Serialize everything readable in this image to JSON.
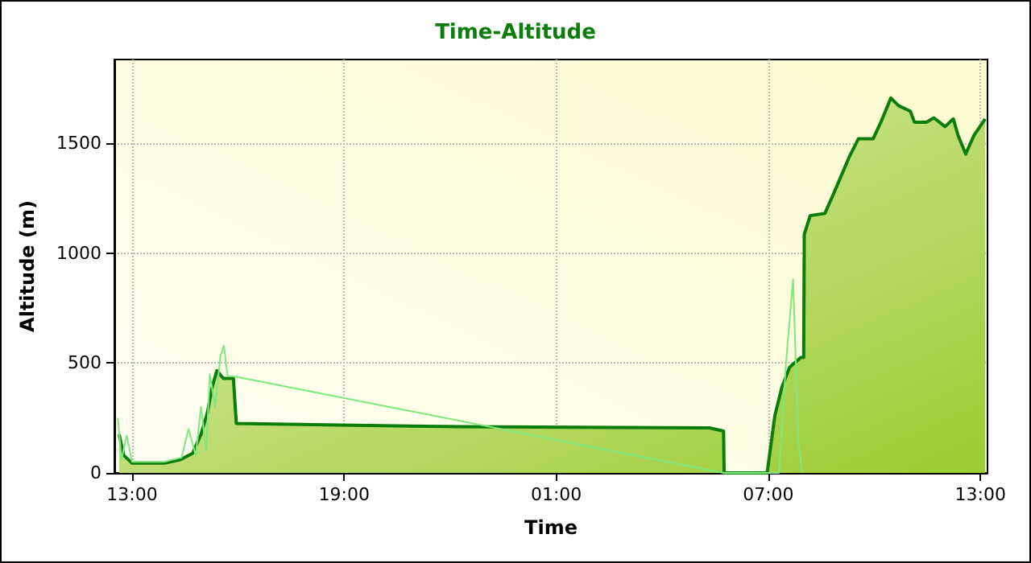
{
  "chart_data": {
    "type": "area",
    "title": "Time-Altitude",
    "xlabel": "Time",
    "ylabel": "Altitude (m)",
    "xlim": [
      "--01-01T12:30",
      "--01-02T13:12"
    ],
    "xticks": [
      {
        "value": "--01-01T13:00",
        "label": "13:00"
      },
      {
        "value": "--01-01T19:00",
        "label": "19:00"
      },
      {
        "value": "--01-02T01:00",
        "label": "01:00"
      },
      {
        "value": "--01-02T07:00",
        "label": "07:00"
      },
      {
        "value": "--01-02T13:00",
        "label": "13:00"
      }
    ],
    "ylim": [
      0,
      1880
    ],
    "yticks": [
      0,
      500,
      1000,
      1500
    ],
    "grid": true,
    "marker": "none",
    "line_style": "solid",
    "series": [
      {
        "type": "line",
        "color": "#7ee87e",
        "x": [
          "--01-01T12:36",
          "--01-01T12:42",
          "--01-01T12:51",
          "--01-01T13:00",
          "--01-01T13:54",
          "--01-01T14:24",
          "--01-01T14:36",
          "--01-01T14:48",
          "--01-01T14:57",
          "--01-01T15:06",
          "--01-01T15:12",
          "--01-01T15:21",
          "--01-01T15:30",
          "--01-01T15:36",
          "--01-01T15:42",
          "--01-01T15:52",
          "--01-02T05:44",
          "--01-02T06:58",
          "--01-02T07:18",
          "--01-02T07:30",
          "--01-02T07:42",
          "--01-02T07:51",
          "--01-02T07:57"
        ],
        "values": [
          250,
          60,
          170,
          50,
          50,
          70,
          200,
          80,
          300,
          100,
          450,
          300,
          530,
          580,
          440,
          440,
          0,
          0,
          0,
          500,
          880,
          150,
          0
        ]
      },
      {
        "color": "#0a7d0a",
        "x": [
          "--01-01T12:38",
          "--01-01T12:46",
          "--01-01T13:00",
          "--01-01T13:55",
          "--01-01T14:22",
          "--01-01T14:43",
          "--01-01T14:57",
          "--01-01T15:08",
          "--01-01T15:16",
          "--01-01T15:24",
          "--01-01T15:35",
          "--01-01T15:52",
          "--01-01T15:57",
          "--01-01T18:54",
          "--01-01T22:18",
          "--01-02T05:20",
          "--01-02T05:44",
          "--01-02T05:45",
          "--01-02T06:58",
          "--01-02T07:11",
          "--01-02T07:23",
          "--01-02T07:36",
          "--01-02T07:55",
          "--01-02T08:00",
          "--01-02T08:01",
          "--01-02T08:11",
          "--01-02T08:36",
          "--01-02T08:50",
          "--01-02T09:17",
          "--01-02T09:33",
          "--01-02T09:58",
          "--01-02T10:11",
          "--01-02T10:28",
          "--01-02T10:41",
          "--01-02T11:01",
          "--01-02T11:08",
          "--01-02T11:28",
          "--01-02T11:41",
          "--01-02T12:00",
          "--01-02T12:14",
          "--01-02T12:22",
          "--01-02T12:35",
          "--01-02T12:49",
          "--01-02T13:08"
        ],
        "values": [
          175,
          80,
          45,
          45,
          60,
          90,
          175,
          275,
          390,
          465,
          430,
          430,
          225,
          218,
          210,
          205,
          190,
          0,
          0,
          260,
          390,
          480,
          525,
          525,
          1085,
          1170,
          1180,
          1265,
          1435,
          1520,
          1520,
          1595,
          1705,
          1670,
          1645,
          1595,
          1595,
          1615,
          1575,
          1610,
          1535,
          1450,
          1535,
          1610
        ]
      }
    ]
  }
}
